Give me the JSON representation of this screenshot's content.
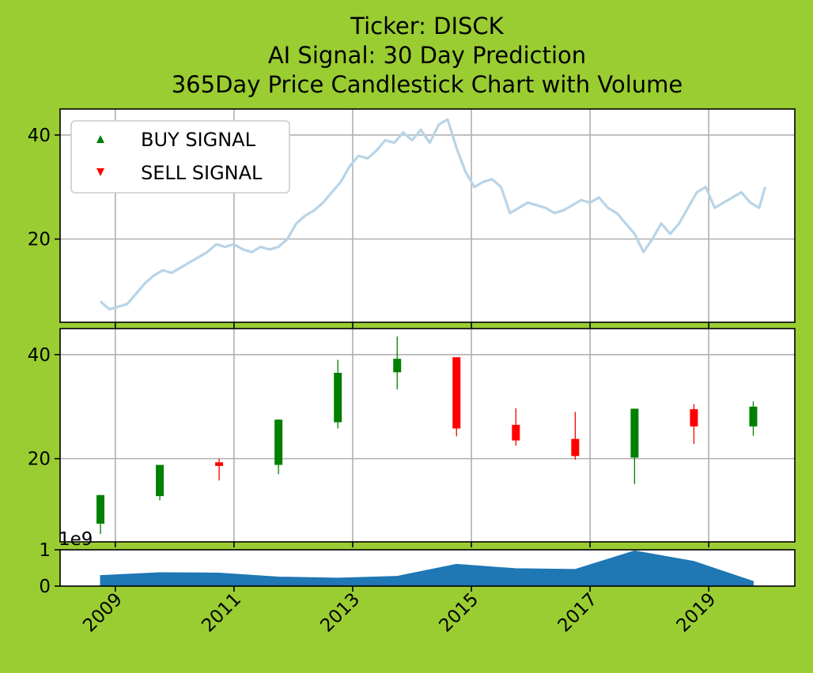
{
  "title_lines": [
    "Ticker: DISCK",
    "AI Signal: 30 Day Prediction",
    "365Day Price Candlestick Chart with Volume"
  ],
  "colors": {
    "background": "#9acd32",
    "up": "#008000",
    "down": "#ff0000",
    "price_line": "#b8d4e8",
    "volume": "#1f77b4",
    "grid": "#b0b0b0"
  },
  "chart_data": [
    {
      "type": "line",
      "panel": "price",
      "legend": {
        "placement": "upper-left",
        "entries": [
          {
            "label": "BUY SIGNAL",
            "marker": "triangle-up",
            "color": "#008000"
          },
          {
            "label": "SELL SIGNAL",
            "marker": "triangle-down",
            "color": "#ff0000"
          }
        ]
      },
      "ylim": [
        4,
        45
      ],
      "yticks": [
        20,
        40
      ],
      "grid": true,
      "series": [
        {
          "x": [
            2008.75,
            2008.9,
            2009.05,
            2009.2,
            2009.35,
            2009.5,
            2009.65,
            2009.8,
            2009.95,
            2010.1,
            2010.25,
            2010.4,
            2010.55,
            2010.7,
            2010.85,
            2011.0,
            2011.15,
            2011.3,
            2011.45,
            2011.6,
            2011.75,
            2011.9,
            2012.05,
            2012.2,
            2012.35,
            2012.5,
            2012.65,
            2012.8,
            2012.95,
            2013.1,
            2013.25,
            2013.4,
            2013.55,
            2013.7,
            2013.85,
            2014.0,
            2014.15,
            2014.3,
            2014.45,
            2014.6,
            2014.75,
            2014.9,
            2015.05,
            2015.2,
            2015.35,
            2015.5,
            2015.65,
            2015.8,
            2015.95,
            2016.1,
            2016.25,
            2016.4,
            2016.55,
            2016.7,
            2016.85,
            2017.0,
            2017.15,
            2017.3,
            2017.45,
            2017.6,
            2017.75,
            2017.9,
            2018.05,
            2018.2,
            2018.35,
            2018.5,
            2018.65,
            2018.8,
            2018.95,
            2019.1,
            2019.25,
            2019.4,
            2019.55,
            2019.7,
            2019.85,
            2019.95
          ],
          "y": [
            8,
            6.5,
            7,
            7.5,
            9.5,
            11.5,
            13,
            14,
            13.5,
            14.5,
            15.5,
            16.5,
            17.5,
            19,
            18.5,
            19,
            18,
            17.5,
            18.5,
            18,
            18.5,
            20,
            23,
            24.5,
            25.5,
            27,
            29,
            31,
            34,
            36,
            35.5,
            37,
            39,
            38.5,
            40.5,
            39,
            41,
            38.5,
            42,
            43,
            37.5,
            33,
            30,
            31,
            31.5,
            30,
            25,
            26,
            27,
            26.5,
            26,
            25,
            25.5,
            26.5,
            27.5,
            27,
            28,
            26,
            25,
            23,
            21,
            17.5,
            20,
            23,
            21,
            23,
            26,
            29,
            30,
            26,
            27,
            28,
            29,
            27,
            26,
            30
          ]
        }
      ]
    },
    {
      "type": "candlestick",
      "panel": "ohlc",
      "ylim": [
        4,
        45
      ],
      "yticks": [
        20,
        40
      ],
      "grid": true,
      "candles": [
        {
          "x": 2008.75,
          "open": 7.5,
          "close": 13,
          "high": 13,
          "low": 5.5
        },
        {
          "x": 2009.75,
          "open": 12.8,
          "close": 18.8,
          "high": 18.8,
          "low": 12
        },
        {
          "x": 2010.75,
          "open": 19.3,
          "close": 18.6,
          "high": 20,
          "low": 15.8
        },
        {
          "x": 2011.75,
          "open": 18.8,
          "close": 27.5,
          "high": 27.5,
          "low": 17
        },
        {
          "x": 2012.75,
          "open": 27,
          "close": 36.5,
          "high": 39,
          "low": 25.8
        },
        {
          "x": 2013.75,
          "open": 36.6,
          "close": 39.2,
          "high": 43.5,
          "low": 33.3
        },
        {
          "x": 2014.75,
          "open": 39.5,
          "close": 25.8,
          "high": 39.5,
          "low": 24.3
        },
        {
          "x": 2015.75,
          "open": 26.5,
          "close": 23.5,
          "high": 29.7,
          "low": 22.5
        },
        {
          "x": 2016.75,
          "open": 23.8,
          "close": 20.5,
          "high": 29,
          "low": 19.8
        },
        {
          "x": 2017.75,
          "open": 20.2,
          "close": 29.6,
          "high": 29.6,
          "low": 15.1
        },
        {
          "x": 2018.75,
          "open": 29.5,
          "close": 26.2,
          "high": 30.5,
          "low": 22.8
        },
        {
          "x": 2019.75,
          "open": 26.2,
          "close": 30,
          "high": 31,
          "low": 24.4
        }
      ]
    },
    {
      "type": "area",
      "panel": "volume",
      "offset_label": "1e9",
      "ylim": [
        0,
        1
      ],
      "yticks": [
        0,
        1
      ],
      "x": [
        2008.75,
        2009.75,
        2010.75,
        2011.75,
        2012.75,
        2013.75,
        2014.75,
        2015.75,
        2016.75,
        2017.75,
        2018.75,
        2019.75
      ],
      "values": [
        0.29,
        0.37,
        0.36,
        0.25,
        0.22,
        0.27,
        0.6,
        0.48,
        0.46,
        0.97,
        0.68,
        0.13
      ]
    }
  ],
  "xaxis": {
    "ticks": [
      2009,
      2011,
      2013,
      2015,
      2017,
      2019
    ],
    "labels": [
      "2009",
      "2011",
      "2013",
      "2015",
      "2017",
      "2019"
    ]
  }
}
